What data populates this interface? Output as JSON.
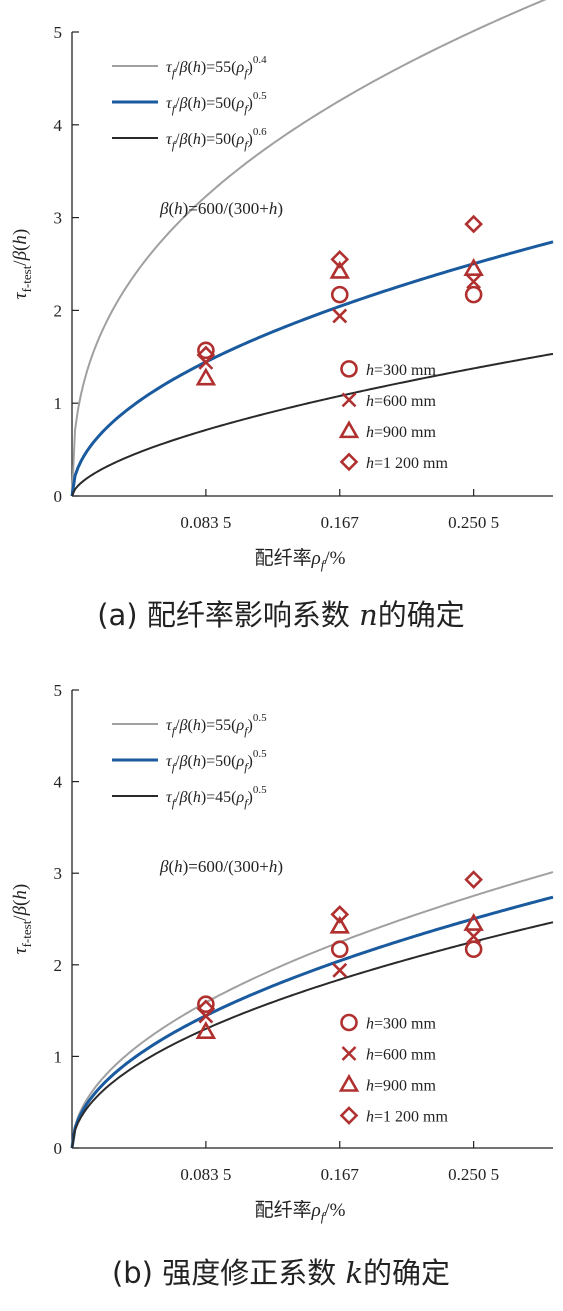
{
  "charts": [
    {
      "caption": "(a) 配纤率影响系数",
      "caption_var": "n",
      "caption_tail": "的确定",
      "chart_data": {
        "type": "scatter",
        "x": [
          0.0835,
          0.167,
          0.2505
        ],
        "x_tick_labels": [
          "0.083 5",
          "0.167",
          "0.250 5"
        ],
        "xlim": [
          0,
          0.3
        ],
        "ylim": [
          0,
          5
        ],
        "yticks": [
          0,
          1,
          2,
          3,
          4,
          5
        ],
        "xlabel_main": "配纤率",
        "xlabel_sym": "ρ",
        "xlabel_sub": "f",
        "xlabel_tail": "/%",
        "ylabel_sym": "τ",
        "ylabel_sub": "f-test",
        "ylabel_tail": "/β(h)",
        "annotation": "β(h)=600/(300+h)",
        "grid": false,
        "legend_position": "top-left",
        "curves": [
          {
            "coef": 55,
            "exp": 0.4,
            "label_coef": "55",
            "label_exp": "0.4",
            "color": "#a0a0a0"
          },
          {
            "coef": 50,
            "exp": 0.5,
            "label_coef": "50",
            "label_exp": "0.5",
            "color": "#1a5a9e"
          },
          {
            "coef": 50,
            "exp": 0.6,
            "label_coef": "50",
            "label_exp": "0.6",
            "color": "#2a2a2a"
          }
        ],
        "series": [
          {
            "name": "h=300 mm",
            "marker": "circle",
            "color": "#b03030",
            "values": [
              1.57,
              2.17,
              2.17
            ]
          },
          {
            "name": "h=600 mm",
            "marker": "x",
            "color": "#b03030",
            "values": [
              1.44,
              1.94,
              2.31
            ]
          },
          {
            "name": "h=900 mm",
            "marker": "triangle",
            "color": "#b03030",
            "values": [
              1.27,
              2.42,
              2.45
            ]
          },
          {
            "name": "h=1 200 mm",
            "marker": "diamond",
            "color": "#b03030",
            "values": [
              1.52,
              2.55,
              2.93
            ]
          }
        ]
      }
    },
    {
      "caption": "(b) 强度修正系数",
      "caption_var": "k",
      "caption_tail": "的确定",
      "chart_data": {
        "type": "scatter",
        "x": [
          0.0835,
          0.167,
          0.2505
        ],
        "x_tick_labels": [
          "0.083 5",
          "0.167",
          "0.250 5"
        ],
        "xlim": [
          0,
          0.3
        ],
        "ylim": [
          0,
          5
        ],
        "yticks": [
          0,
          1,
          2,
          3,
          4,
          5
        ],
        "xlabel_main": "配纤率",
        "xlabel_sym": "ρ",
        "xlabel_sub": "f",
        "xlabel_tail": "/%",
        "ylabel_sym": "τ",
        "ylabel_sub": "f-test",
        "ylabel_tail": "/β(h)",
        "annotation": "β(h)=600/(300+h)",
        "grid": false,
        "legend_position": "top-left",
        "curves": [
          {
            "coef": 55,
            "exp": 0.5,
            "label_coef": "55",
            "label_exp": "0.5",
            "color": "#a0a0a0"
          },
          {
            "coef": 50,
            "exp": 0.5,
            "label_coef": "50",
            "label_exp": "0.5",
            "color": "#1a5a9e"
          },
          {
            "coef": 45,
            "exp": 0.5,
            "label_coef": "45",
            "label_exp": "0.5",
            "color": "#2a2a2a"
          }
        ],
        "series": [
          {
            "name": "h=300 mm",
            "marker": "circle",
            "color": "#b03030",
            "values": [
              1.57,
              2.17,
              2.17
            ]
          },
          {
            "name": "h=600 mm",
            "marker": "x",
            "color": "#b03030",
            "values": [
              1.44,
              1.94,
              2.31
            ]
          },
          {
            "name": "h=900 mm",
            "marker": "triangle",
            "color": "#b03030",
            "values": [
              1.27,
              2.42,
              2.45
            ]
          },
          {
            "name": "h=1 200 mm",
            "marker": "diamond",
            "color": "#b03030",
            "values": [
              1.52,
              2.55,
              2.93
            ]
          }
        ]
      }
    }
  ]
}
